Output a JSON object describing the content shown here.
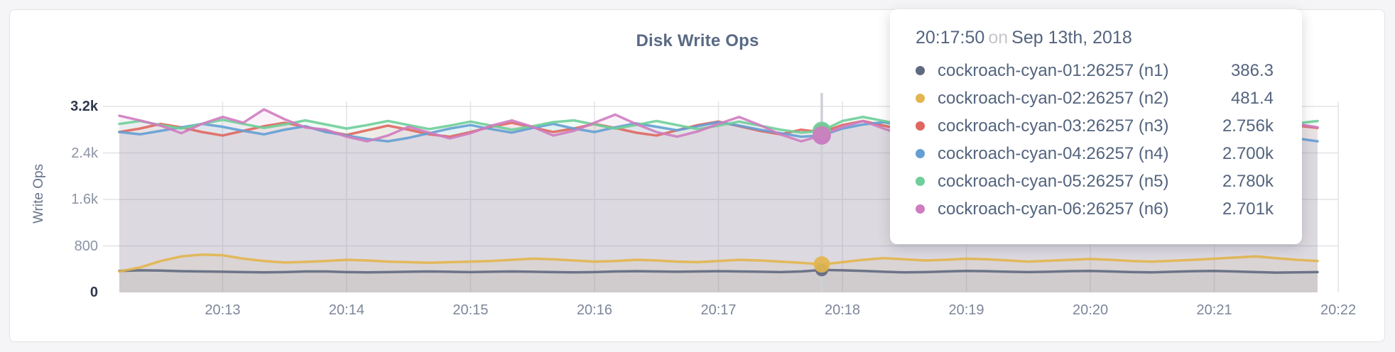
{
  "panel": {
    "title": "Disk Write Ops"
  },
  "colors": {
    "grid": "#e3e3e7",
    "guideline": "#cdd1d6",
    "text_primary": "#54647e",
    "text_muted": "#8d93a5",
    "tick_dark": "#30384c"
  },
  "y_axis": {
    "label": "Write Ops"
  },
  "tooltip": {
    "time": "20:17:50",
    "separator": "on",
    "date": "Sep 13th, 2018",
    "rows": [
      {
        "label": "cockroach-cyan-01:26257 (n1)",
        "value": "386.3"
      },
      {
        "label": "cockroach-cyan-02:26257 (n2)",
        "value": "481.4"
      },
      {
        "label": "cockroach-cyan-03:26257 (n3)",
        "value": "2.756k"
      },
      {
        "label": "cockroach-cyan-04:26257 (n4)",
        "value": "2.700k"
      },
      {
        "label": "cockroach-cyan-05:26257 (n5)",
        "value": "2.780k"
      },
      {
        "label": "cockroach-cyan-06:26257 (n6)",
        "value": "2.701k"
      }
    ]
  },
  "chart_data": {
    "type": "line",
    "title": "Disk Write Ops",
    "ylabel": "Write Ops",
    "ylim": [
      0,
      3200
    ],
    "x_start": "20:12:10",
    "x_interval_seconds": 10,
    "hover_index": 34,
    "hover_time": "20:17:50",
    "grid": true,
    "y_ticks": [
      {
        "label": "0",
        "value": 0,
        "emphasis": true
      },
      {
        "label": "800",
        "value": 800,
        "emphasis": false
      },
      {
        "label": "1.6k",
        "value": 1600,
        "emphasis": false
      },
      {
        "label": "2.4k",
        "value": 2400,
        "emphasis": false
      },
      {
        "label": "3.2k",
        "value": 3200,
        "emphasis": true
      }
    ],
    "x_ticks": [
      {
        "label": "20:13",
        "t": 50
      },
      {
        "label": "20:14",
        "t": 110
      },
      {
        "label": "20:15",
        "t": 170
      },
      {
        "label": "20:16",
        "t": 230
      },
      {
        "label": "20:17",
        "t": 290
      },
      {
        "label": "20:18",
        "t": 350
      },
      {
        "label": "20:19",
        "t": 410
      },
      {
        "label": "20:20",
        "t": 470
      },
      {
        "label": "20:21",
        "t": 530
      },
      {
        "label": "20:22",
        "t": 590
      }
    ],
    "series": [
      {
        "name": "cockroach-cyan-01:26257 (n1)",
        "color": "#5f6980",
        "values": [
          370,
          380,
          375,
          365,
          360,
          355,
          350,
          345,
          350,
          360,
          360,
          350,
          345,
          350,
          355,
          360,
          355,
          350,
          355,
          360,
          355,
          350,
          345,
          350,
          360,
          365,
          360,
          355,
          360,
          365,
          360,
          355,
          350,
          360,
          386.3,
          380,
          370,
          355,
          345,
          350,
          360,
          370,
          365,
          355,
          350,
          355,
          365,
          370,
          360,
          350,
          345,
          355,
          365,
          370,
          360,
          350,
          340,
          345,
          350
        ]
      },
      {
        "name": "cockroach-cyan-02:26257 (n2)",
        "color": "#e2b54e",
        "values": [
          360,
          430,
          540,
          620,
          650,
          640,
          580,
          540,
          515,
          525,
          540,
          560,
          550,
          530,
          520,
          510,
          520,
          530,
          540,
          560,
          580,
          570,
          550,
          530,
          540,
          560,
          550,
          530,
          520,
          540,
          560,
          550,
          530,
          510,
          481.4,
          520,
          560,
          590,
          570,
          550,
          560,
          580,
          570,
          550,
          530,
          545,
          560,
          575,
          560,
          540,
          530,
          545,
          560,
          580,
          600,
          620,
          590,
          560,
          540
        ]
      },
      {
        "name": "cockroach-cyan-03:26257 (n3)",
        "color": "#df675f",
        "values": [
          2760,
          2820,
          2900,
          2840,
          2760,
          2700,
          2780,
          2860,
          2920,
          2850,
          2780,
          2710,
          2790,
          2870,
          2800,
          2720,
          2680,
          2760,
          2850,
          2920,
          2840,
          2760,
          2820,
          2900,
          2830,
          2750,
          2700,
          2790,
          2880,
          2940,
          2860,
          2780,
          2720,
          2800,
          2756,
          2880,
          2950,
          2870,
          2790,
          2730,
          2810,
          2890,
          2820,
          2740,
          2700,
          2780,
          2860,
          2930,
          2850,
          2770,
          2710,
          2790,
          2870,
          2900,
          2820,
          2750,
          2800,
          2870,
          2830
        ]
      },
      {
        "name": "cockroach-cyan-04:26257 (n4)",
        "color": "#649fd4",
        "values": [
          2760,
          2720,
          2780,
          2840,
          2900,
          2850,
          2780,
          2720,
          2800,
          2860,
          2760,
          2700,
          2640,
          2600,
          2660,
          2740,
          2820,
          2880,
          2810,
          2750,
          2830,
          2900,
          2820,
          2760,
          2840,
          2910,
          2850,
          2790,
          2860,
          2930,
          2870,
          2800,
          2740,
          2680,
          2700,
          2820,
          2890,
          2930,
          2860,
          2790,
          2850,
          2920,
          2850,
          2780,
          2720,
          2790,
          2860,
          2800,
          2740,
          2800,
          2870,
          2810,
          2750,
          2700,
          2760,
          2830,
          2770,
          2650,
          2600
        ]
      },
      {
        "name": "cockroach-cyan-05:26257 (n5)",
        "color": "#6fce99",
        "values": [
          2900,
          2950,
          2880,
          2820,
          2900,
          2970,
          2900,
          2830,
          2890,
          2960,
          2890,
          2820,
          2880,
          2950,
          2880,
          2810,
          2870,
          2940,
          2870,
          2800,
          2860,
          2930,
          2960,
          2890,
          2820,
          2880,
          2950,
          2880,
          2810,
          2870,
          2940,
          2870,
          2800,
          2750,
          2780,
          2950,
          3020,
          2950,
          2880,
          2820,
          2880,
          2950,
          2880,
          2810,
          2870,
          2940,
          2870,
          2800,
          2860,
          2930,
          2860,
          2790,
          2850,
          2920,
          2850,
          2780,
          2840,
          2910,
          2950
        ]
      },
      {
        "name": "cockroach-cyan-06:26257 (n6)",
        "color": "#cf7cc0",
        "values": [
          3040,
          2960,
          2870,
          2740,
          2900,
          3020,
          2920,
          3150,
          2980,
          2840,
          2800,
          2680,
          2600,
          2700,
          2850,
          2750,
          2650,
          2740,
          2870,
          2960,
          2850,
          2700,
          2780,
          2920,
          3060,
          2900,
          2760,
          2680,
          2770,
          2900,
          3020,
          2880,
          2720,
          2600,
          2701,
          2850,
          2950,
          2820,
          2700,
          2780,
          2900,
          3000,
          2870,
          2740,
          2650,
          2750,
          2880,
          2960,
          2840,
          2710,
          2630,
          2730,
          2860,
          2940,
          2820,
          2690,
          2760,
          2900,
          2840
        ]
      }
    ]
  }
}
